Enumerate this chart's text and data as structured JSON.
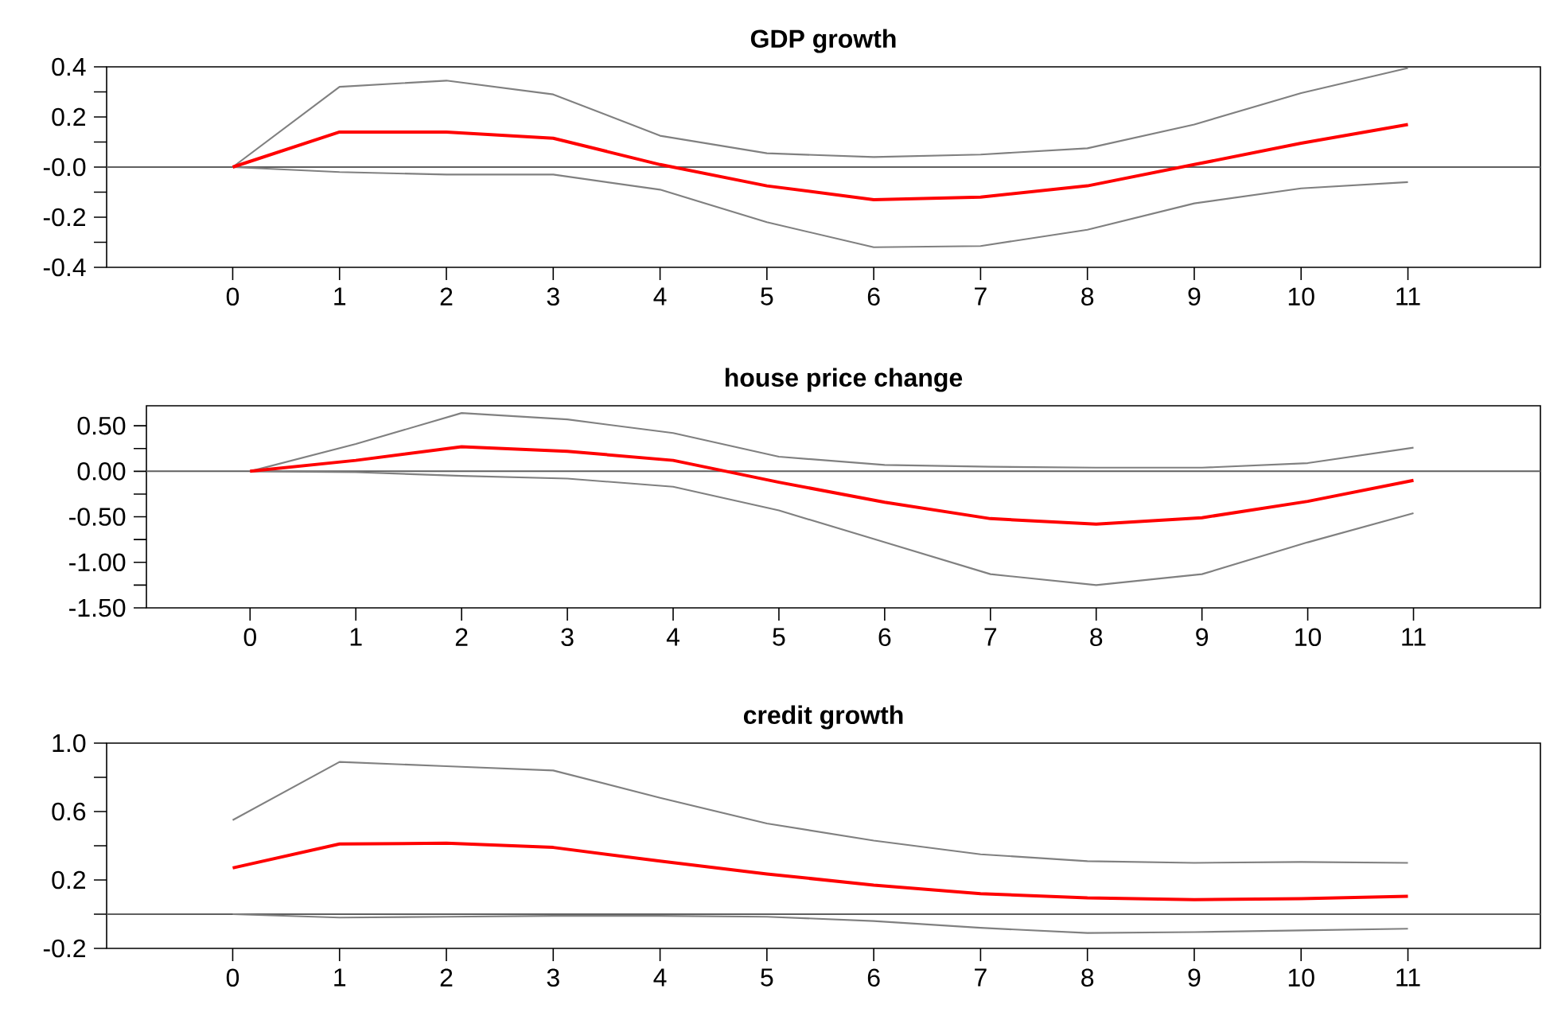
{
  "chart_data": [
    {
      "type": "line",
      "title": "GDP growth",
      "x": [
        0,
        1,
        2,
        3,
        4,
        5,
        6,
        7,
        8,
        9,
        10,
        11
      ],
      "xlim": [
        -1.18,
        12.24
      ],
      "xticks": [
        0,
        1,
        2,
        3,
        4,
        5,
        6,
        7,
        8,
        9,
        10,
        11
      ],
      "ylim": [
        -0.4,
        0.4
      ],
      "yticks": [
        {
          "value": -0.4,
          "label": "-0.4"
        },
        {
          "value": -0.3,
          "label": null
        },
        {
          "value": -0.2,
          "label": "-0.2"
        },
        {
          "value": -0.1,
          "label": null
        },
        {
          "value": 0,
          "label": "-0.0"
        },
        {
          "value": 0.1,
          "label": null
        },
        {
          "value": 0.2,
          "label": "0.2"
        },
        {
          "value": 0.3,
          "label": null
        },
        {
          "value": 0.4,
          "label": "0.4"
        }
      ],
      "ref_lines": [
        {
          "axis": "y",
          "value": 0,
          "color": "#606060"
        }
      ],
      "series": [
        {
          "color": "#808080",
          "values": [
            0,
            0.32,
            0.345,
            0.29,
            0.125,
            0.055,
            0.04,
            0.05,
            0.075,
            0.17,
            0.295,
            0.395
          ]
        },
        {
          "color": "#808080",
          "values": [
            0,
            -0.02,
            -0.03,
            -0.03,
            -0.09,
            -0.22,
            -0.32,
            -0.315,
            -0.25,
            -0.145,
            -0.085,
            -0.06
          ]
        },
        {
          "color": "#ff0000",
          "values": [
            0,
            0.14,
            0.14,
            0.115,
            0.01,
            -0.075,
            -0.13,
            -0.12,
            -0.075,
            0.01,
            0.095,
            0.17
          ]
        }
      ]
    },
    {
      "type": "line",
      "title": "house price change",
      "x": [
        0,
        1,
        2,
        3,
        4,
        5,
        6,
        7,
        8,
        9,
        10,
        11
      ],
      "xlim": [
        -0.98,
        12.2
      ],
      "xticks": [
        0,
        1,
        2,
        3,
        4,
        5,
        6,
        7,
        8,
        9,
        10,
        11
      ],
      "ylim": [
        -1.5,
        0.72
      ],
      "yticks": [
        {
          "value": -1.5,
          "label": "-1.50"
        },
        {
          "value": -1.25,
          "label": null
        },
        {
          "value": -1.0,
          "label": "-1.00"
        },
        {
          "value": -0.75,
          "label": null
        },
        {
          "value": -0.5,
          "label": "-0.50"
        },
        {
          "value": -0.25,
          "label": null
        },
        {
          "value": 0,
          "label": "0.00"
        },
        {
          "value": 0.25,
          "label": null
        },
        {
          "value": 0.5,
          "label": "0.50"
        }
      ],
      "ref_lines": [
        {
          "axis": "y",
          "value": 0,
          "color": "#606060"
        }
      ],
      "series": [
        {
          "color": "#808080",
          "values": [
            0,
            0.3,
            0.64,
            0.57,
            0.42,
            0.16,
            0.07,
            0.05,
            0.04,
            0.04,
            0.09,
            0.26
          ]
        },
        {
          "color": "#808080",
          "values": [
            0,
            -0.01,
            -0.05,
            -0.08,
            -0.17,
            -0.43,
            -0.78,
            -1.13,
            -1.25,
            -1.13,
            -0.78,
            -0.46
          ]
        },
        {
          "color": "#ff0000",
          "values": [
            0,
            0.12,
            0.27,
            0.22,
            0.12,
            -0.12,
            -0.34,
            -0.52,
            -0.58,
            -0.51,
            -0.33,
            -0.1
          ]
        }
      ]
    },
    {
      "type": "line",
      "title": "credit growth",
      "x": [
        0,
        1,
        2,
        3,
        4,
        5,
        6,
        7,
        8,
        9,
        10,
        11
      ],
      "xlim": [
        -1.18,
        12.24
      ],
      "xticks": [
        0,
        1,
        2,
        3,
        4,
        5,
        6,
        7,
        8,
        9,
        10,
        11
      ],
      "ylim": [
        -0.2,
        1.0
      ],
      "yticks": [
        {
          "value": -0.2,
          "label": "-0.2"
        },
        {
          "value": 0,
          "label": null
        },
        {
          "value": 0.2,
          "label": "0.2"
        },
        {
          "value": 0.4,
          "label": null
        },
        {
          "value": 0.6,
          "label": "0.6"
        },
        {
          "value": 0.8,
          "label": null
        },
        {
          "value": 1.0,
          "label": "1.0"
        }
      ],
      "ref_lines": [
        {
          "axis": "y",
          "value": 0,
          "color": "#606060"
        }
      ],
      "series": [
        {
          "color": "#808080",
          "values": [
            0.55,
            0.89,
            0.865,
            0.84,
            0.68,
            0.53,
            0.43,
            0.35,
            0.31,
            0.3,
            0.305,
            0.3
          ]
        },
        {
          "color": "#808080",
          "values": [
            0,
            -0.02,
            -0.015,
            -0.01,
            -0.01,
            -0.015,
            -0.04,
            -0.08,
            -0.11,
            -0.105,
            -0.095,
            -0.085
          ]
        },
        {
          "color": "#ff0000",
          "values": [
            0.27,
            0.41,
            0.415,
            0.39,
            0.31,
            0.235,
            0.17,
            0.12,
            0.095,
            0.085,
            0.09,
            0.105
          ]
        }
      ]
    }
  ]
}
